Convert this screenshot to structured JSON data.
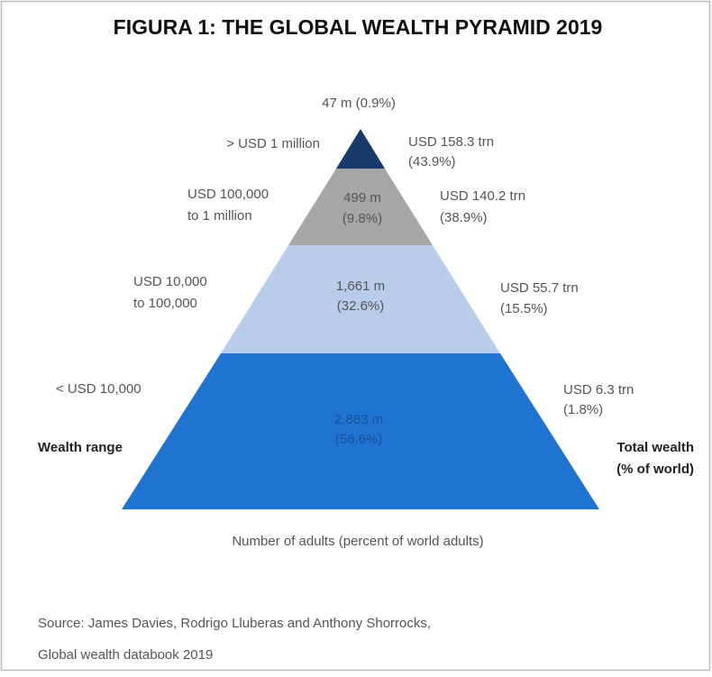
{
  "title": "FIGURA 1: THE GLOBAL WEALTH PYRAMID 2019",
  "tiers": [
    {
      "range": [
        "> USD 1 million"
      ],
      "adults": "47 m",
      "adults_share": "(0.9%)",
      "wealth": "USD 158.3 trn",
      "wealth_share": "(43.9%)"
    },
    {
      "range": [
        "USD 100,000",
        "to 1 million"
      ],
      "adults": "499 m",
      "adults_share": "(9.8%)",
      "wealth": "USD 140.2 trn",
      "wealth_share": "(38.9%)"
    },
    {
      "range": [
        "USD 10,000",
        "to 100,000"
      ],
      "adults": "1,661 m",
      "adults_share": "(32.6%)",
      "wealth": "USD 55.7 trn",
      "wealth_share": "(15.5%)"
    },
    {
      "range": [
        "< USD 10,000"
      ],
      "adults": "2,883 m",
      "adults_share": "(56.6%)",
      "wealth": "USD 6.3 trn",
      "wealth_share": "(1.8%)"
    }
  ],
  "left_heading": "Wealth range",
  "right_heading": [
    "Total wealth",
    "(% of world)"
  ],
  "bottom_label": "Number of adults (percent of world adults)",
  "source": [
    "Source: James Davies, Rodrigo Lluberas and Anthony Shorrocks,",
    "Global wealth databook 2019"
  ]
}
